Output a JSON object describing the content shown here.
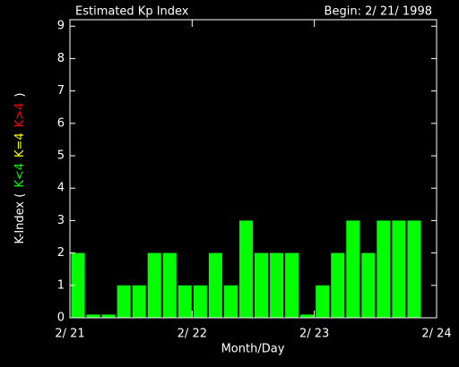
{
  "chart_data": {
    "type": "bar",
    "title": "Estimated Kp Index",
    "subtitle": "Begin: 2/ 21/ 1998",
    "x_label": "Month/Day",
    "y_label_parts": [
      {
        "text": "K-Index (",
        "color": "#ffffff"
      },
      {
        "text": "K<4",
        "color": "#00ff00"
      },
      {
        "text": "K=4",
        "color": "#ffff00"
      },
      {
        "text": "K>4",
        "color": "#ff0000"
      },
      {
        "text": ")",
        "color": "#ffffff"
      }
    ],
    "x": [
      0,
      0.125,
      0.25,
      0.375,
      0.5,
      0.625,
      0.75,
      0.875,
      1,
      1.125,
      1.25,
      1.375,
      1.5,
      1.625,
      1.75,
      1.875,
      2,
      2.125,
      2.25,
      2.375,
      2.5,
      2.625,
      2.75
    ],
    "bar_width": 0.125,
    "values": [
      2,
      0.1,
      0.1,
      1,
      1,
      2,
      2,
      1,
      1,
      2,
      1,
      3,
      2,
      2,
      2,
      0.1,
      1,
      2,
      3,
      2,
      3,
      3,
      3
    ],
    "color": "#00ff00",
    "xlim": [
      0,
      3
    ],
    "xticks": [
      {
        "value": 0,
        "label": "2/ 21"
      },
      {
        "value": 1,
        "label": "2/ 22"
      },
      {
        "value": 2,
        "label": "2/ 23"
      },
      {
        "value": 3,
        "label": "2/ 24"
      }
    ],
    "ylim": [
      0,
      9.2
    ],
    "yticks": [
      0,
      1,
      2,
      3,
      4,
      5,
      6,
      7,
      8,
      9
    ]
  }
}
